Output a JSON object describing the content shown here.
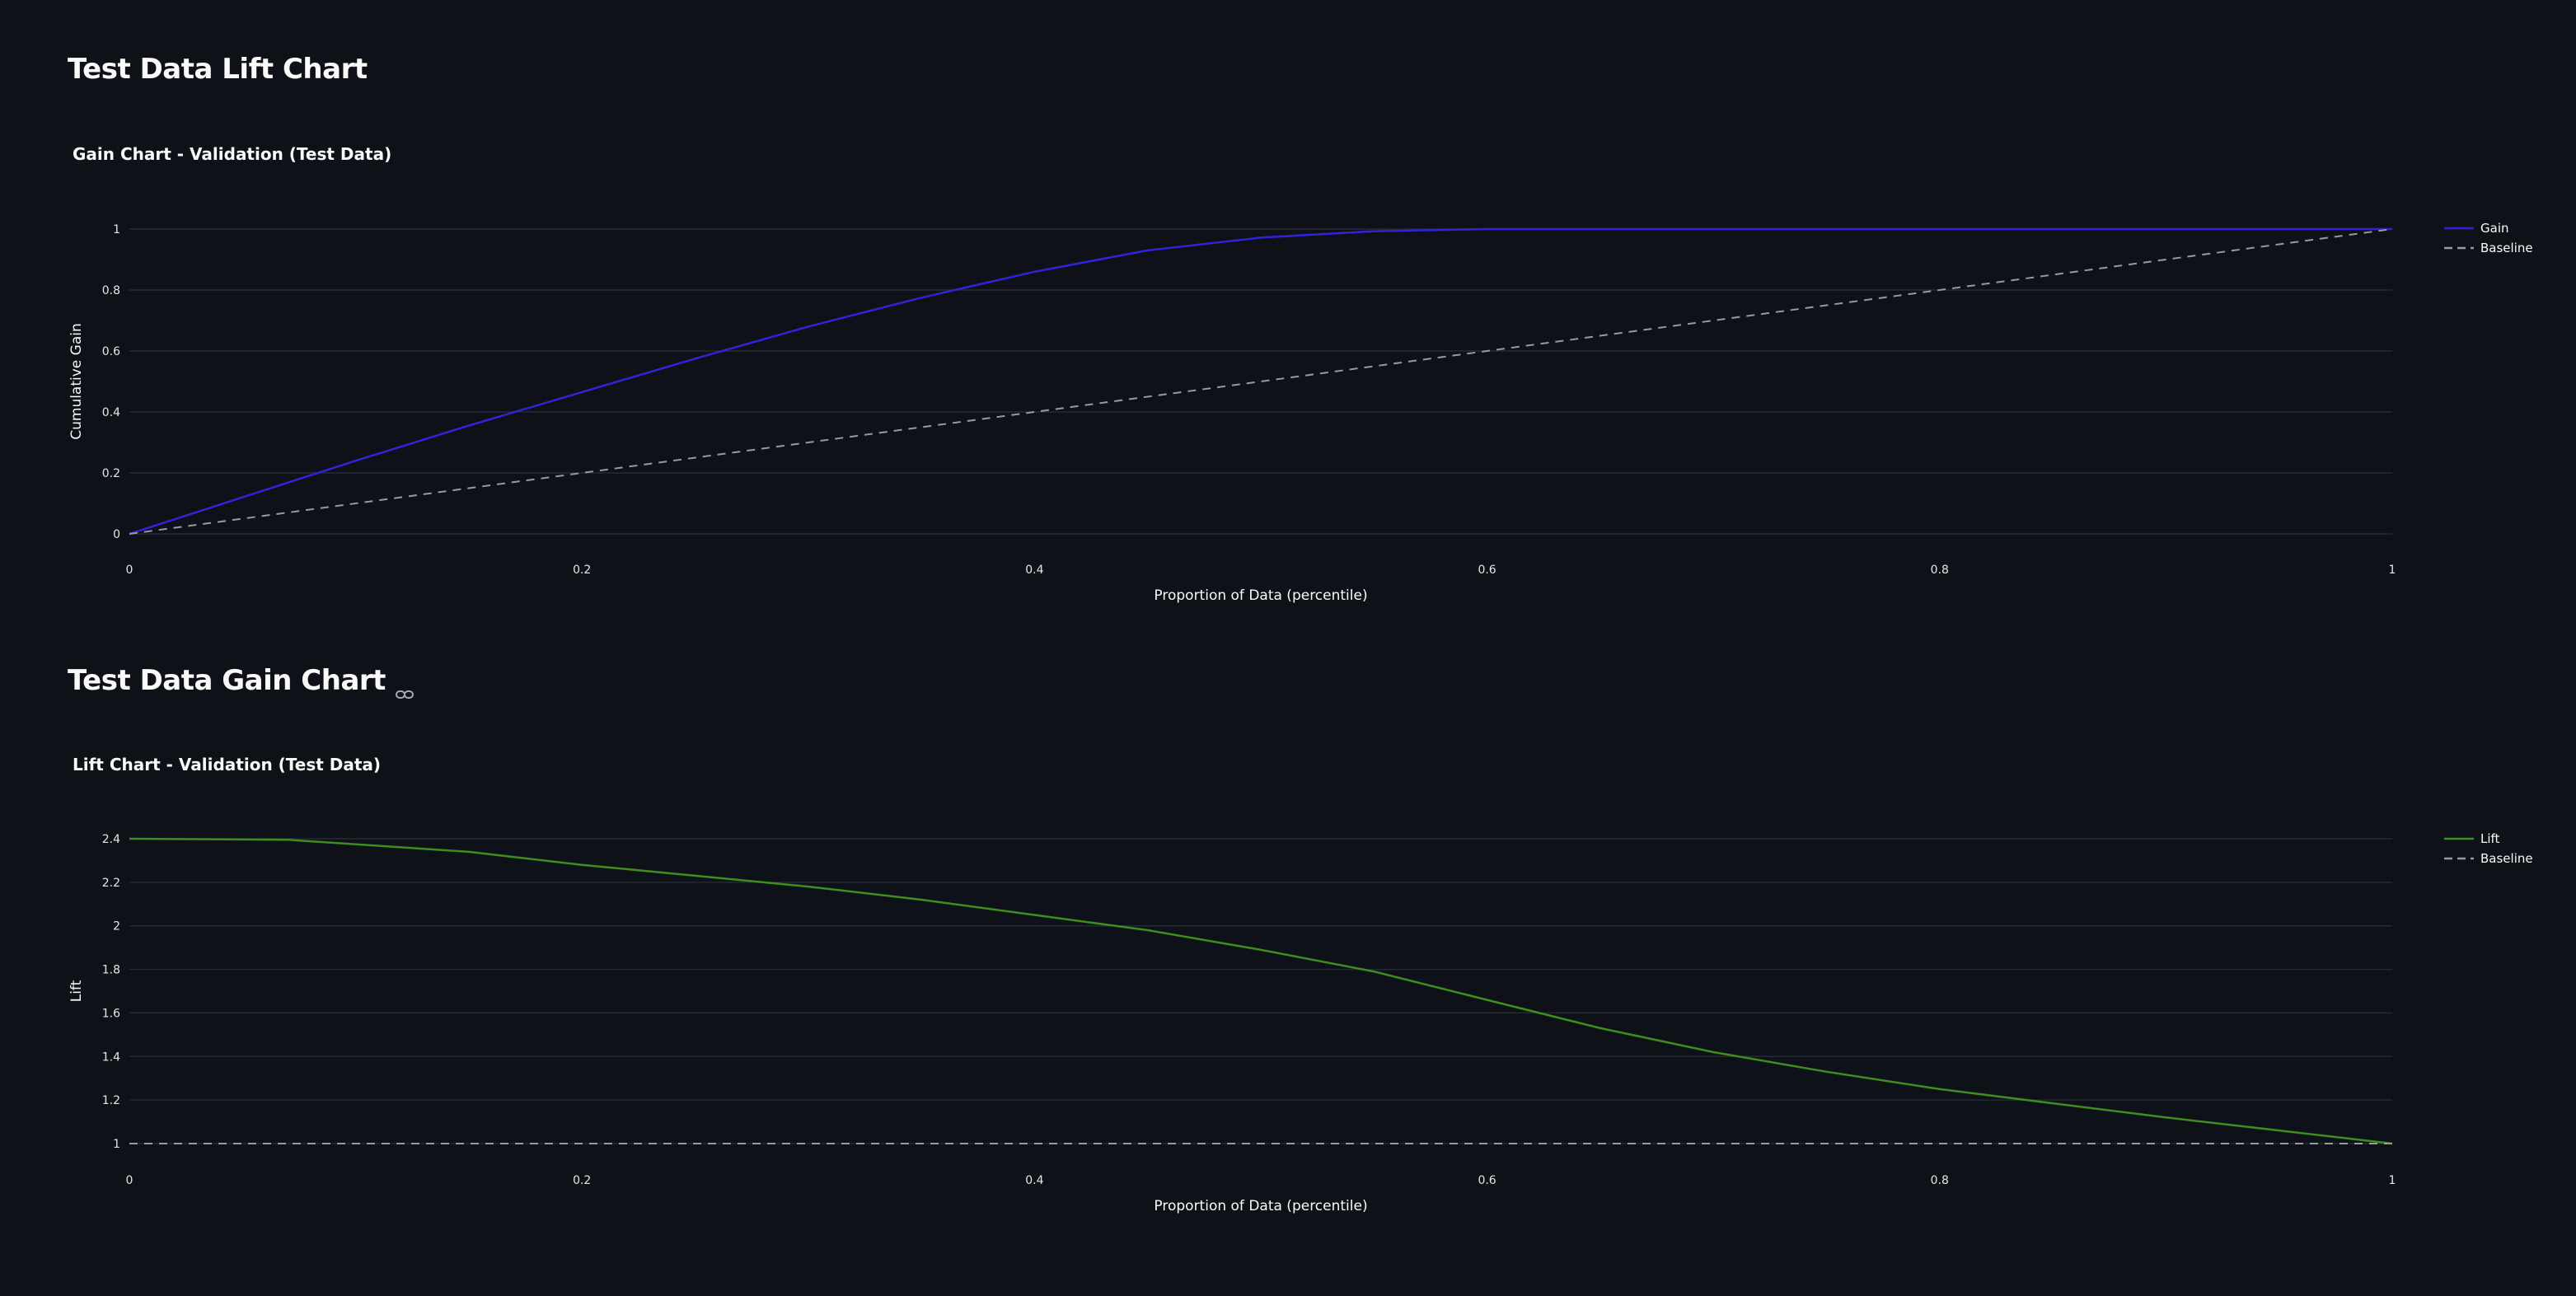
{
  "headers": {
    "lift_section": "Test Data Lift Chart",
    "gain_section": "Test Data Gain Chart",
    "gain_section_icon": "link-icon"
  },
  "colors": {
    "background": "#0e1117",
    "gain_line": "#2f24d9",
    "lift_line": "#3e8e1f",
    "baseline": "#9a9a9a",
    "grid": "#262a33"
  },
  "chart_data": [
    {
      "id": "gain",
      "type": "line",
      "title": "Gain Chart - Validation (Test Data)",
      "xlabel": "Proportion of Data (percentile)",
      "ylabel": "Cumulative Gain",
      "xlim": [
        0,
        1
      ],
      "ylim": [
        0,
        1
      ],
      "x_ticks": [
        "0",
        "0.2",
        "0.4",
        "0.6",
        "0.8",
        "1"
      ],
      "y_ticks": [
        "0",
        "0.2",
        "0.4",
        "0.6",
        "0.8",
        "1"
      ],
      "grid": true,
      "legend_position": "top-right",
      "series": [
        {
          "name": "Gain",
          "style": "solid",
          "x": [
            0,
            0.05,
            0.1,
            0.15,
            0.2,
            0.25,
            0.3,
            0.35,
            0.4,
            0.45,
            0.5,
            0.55,
            0.6,
            0.65,
            0.7,
            0.75,
            0.8,
            0.85,
            0.9,
            0.95,
            1.0
          ],
          "y": [
            0,
            0.12,
            0.24,
            0.355,
            0.465,
            0.575,
            0.68,
            0.775,
            0.86,
            0.93,
            0.972,
            0.993,
            1.0,
            1.0,
            1.0,
            1.0,
            1.0,
            1.0,
            1.0,
            1.0,
            1.0
          ]
        },
        {
          "name": "Baseline",
          "style": "dashed",
          "x": [
            0,
            1
          ],
          "y": [
            0,
            1
          ]
        }
      ]
    },
    {
      "id": "lift",
      "type": "line",
      "title": "Lift Chart - Validation (Test Data)",
      "xlabel": "Proportion of Data (percentile)",
      "ylabel": "Lift",
      "xlim": [
        0,
        1
      ],
      "ylim": [
        1,
        2.4
      ],
      "x_ticks": [
        "0",
        "0.2",
        "0.4",
        "0.6",
        "0.8",
        "1"
      ],
      "y_ticks": [
        "1",
        "1.2",
        "1.4",
        "1.6",
        "1.8",
        "2",
        "2.2",
        "2.4"
      ],
      "grid": true,
      "legend_position": "top-right",
      "series": [
        {
          "name": "Lift",
          "style": "solid",
          "x": [
            0,
            0.07,
            0.15,
            0.2,
            0.25,
            0.3,
            0.35,
            0.4,
            0.45,
            0.5,
            0.55,
            0.6,
            0.65,
            0.7,
            0.75,
            0.8,
            0.85,
            0.9,
            0.95,
            1.0
          ],
          "y": [
            2.4,
            2.395,
            2.34,
            2.28,
            2.23,
            2.18,
            2.12,
            2.05,
            1.98,
            1.89,
            1.79,
            1.66,
            1.53,
            1.42,
            1.33,
            1.25,
            1.185,
            1.12,
            1.06,
            1.0
          ]
        },
        {
          "name": "Baseline",
          "style": "dashed",
          "x": [
            0,
            1
          ],
          "y": [
            1,
            1
          ]
        }
      ]
    }
  ]
}
